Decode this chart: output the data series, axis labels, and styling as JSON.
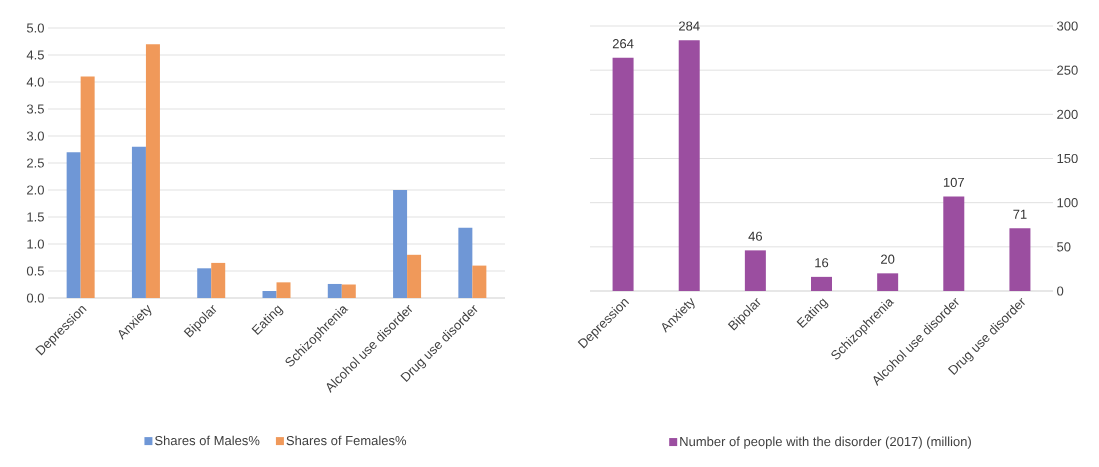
{
  "chart_data": [
    {
      "type": "bar",
      "categories": [
        "Depression",
        "Anxiety",
        "Bipolar",
        "Eating",
        "Schizophrenia",
        "Alcohol use disorder",
        "Drug use disorder"
      ],
      "series": [
        {
          "name": "Shares of Males%",
          "color": "#6f97d6",
          "values": [
            2.7,
            2.8,
            0.55,
            0.13,
            0.26,
            2.0,
            1.3
          ]
        },
        {
          "name": "Shares of Females%",
          "color": "#f0995a",
          "values": [
            4.1,
            4.7,
            0.65,
            0.29,
            0.25,
            0.8,
            0.6
          ]
        }
      ],
      "ylim": [
        0,
        5
      ],
      "yticks": [
        {
          "value": 0,
          "label": "0.0"
        },
        {
          "value": 0.5,
          "label": "0.5"
        },
        {
          "value": 1,
          "label": "1.0"
        },
        {
          "value": 1.5,
          "label": "1.5"
        },
        {
          "value": 2,
          "label": "2.0"
        },
        {
          "value": 2.5,
          "label": "2.5"
        },
        {
          "value": 3,
          "label": "3.0"
        },
        {
          "value": 3.5,
          "label": "3.5"
        },
        {
          "value": 4,
          "label": "4.0"
        },
        {
          "value": 4.5,
          "label": "4.5"
        },
        {
          "value": 5,
          "label": "5.0"
        }
      ],
      "grid": "y",
      "legend": "bottom"
    },
    {
      "type": "bar",
      "categories": [
        "Depression",
        "Anxiety",
        "Bipolar",
        "Eating",
        "Schizophrenia",
        "Alcohol use disorder",
        "Drug use disorder"
      ],
      "series": [
        {
          "name": "Number of people with the disorder (2017) (million)",
          "color": "#9b4ea0",
          "axis": "y2",
          "values": [
            264,
            284,
            46,
            16,
            20,
            107,
            71
          ]
        }
      ],
      "y2lim": [
        0,
        300
      ],
      "y2ticks": [
        0,
        50,
        100,
        150,
        200,
        250,
        300
      ],
      "data_labels": true,
      "grid": "y",
      "legend": "bottom"
    }
  ]
}
